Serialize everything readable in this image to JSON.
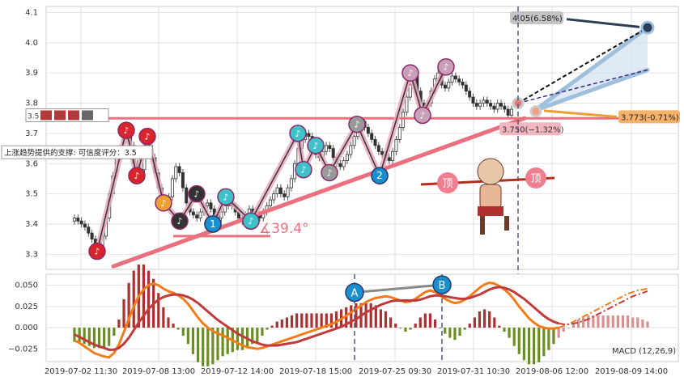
{
  "chart_data": {
    "type": "candlestick",
    "price_panel": {
      "ylim": [
        3.25,
        4.12
      ],
      "yticks": [
        3.3,
        3.4,
        3.5,
        3.6,
        3.7,
        3.8,
        3.9,
        4.0,
        4.1
      ],
      "candles_close": [
        3.42,
        3.41,
        3.4,
        3.39,
        3.37,
        3.35,
        3.33,
        3.31,
        3.36,
        3.42,
        3.5,
        3.56,
        3.62,
        3.65,
        3.68,
        3.7,
        3.66,
        3.6,
        3.56,
        3.58,
        3.63,
        3.66,
        3.62,
        3.57,
        3.52,
        3.48,
        3.46,
        3.49,
        3.55,
        3.59,
        3.57,
        3.52,
        3.47,
        3.44,
        3.43,
        3.42,
        3.44,
        3.46,
        3.47,
        3.45,
        3.43,
        3.42,
        3.44,
        3.46,
        3.48,
        3.46,
        3.44,
        3.42,
        3.41,
        3.43,
        3.45,
        3.44,
        3.43,
        3.42,
        3.44,
        3.46,
        3.48,
        3.5,
        3.52,
        3.5,
        3.49,
        3.52,
        3.55,
        3.6,
        3.65,
        3.68,
        3.7,
        3.69,
        3.66,
        3.63,
        3.62,
        3.64,
        3.66,
        3.65,
        3.62,
        3.6,
        3.59,
        3.61,
        3.63,
        3.66,
        3.69,
        3.72,
        3.74,
        3.72,
        3.7,
        3.68,
        3.66,
        3.64,
        3.63,
        3.62,
        3.61,
        3.64,
        3.68,
        3.72,
        3.77,
        3.82,
        3.86,
        3.89,
        3.84,
        3.8,
        3.78,
        3.8,
        3.84,
        3.88,
        3.9,
        3.86,
        3.85,
        3.87,
        3.89,
        3.88,
        3.87,
        3.86,
        3.84,
        3.82,
        3.8,
        3.79,
        3.8,
        3.81,
        3.8,
        3.79,
        3.78,
        3.8,
        3.79,
        3.78,
        3.76,
        3.78
      ],
      "support_line_label": "3.5",
      "support_line_value": 3.75,
      "support_note": "上涨趋势提供的支撑: 可信度评分：3.5",
      "angle_label": "∡39.4°",
      "target_label": "4.05(6.58%)",
      "target_value": 4.05,
      "projection_up_label": "3.773(-0.71%)",
      "projection_up_value": 3.773,
      "projection_low_label": "3.750(−1.32%)",
      "projection_low_value": 3.75,
      "wave_labels": [
        "1",
        "2"
      ],
      "cartoon_labels": [
        "顶",
        "顶"
      ]
    },
    "macd_panel": {
      "title": "MACD (12,26,9)",
      "ylim": [
        -0.04,
        0.063
      ],
      "yticks": [
        -0.025,
        0.0,
        0.025,
        0.05
      ],
      "ytick_labels": [
        "−0.025",
        "0.000",
        "0.025",
        "0.050"
      ],
      "markers": [
        "A",
        "B"
      ],
      "dif": [
        -0.015,
        -0.018,
        -0.022,
        -0.026,
        -0.03,
        -0.032,
        -0.034,
        -0.035,
        -0.03,
        -0.02,
        -0.005,
        0.01,
        0.025,
        0.037,
        0.045,
        0.05,
        0.052,
        0.05,
        0.046,
        0.043,
        0.041,
        0.038,
        0.034,
        0.028,
        0.02,
        0.012,
        0.005,
        0.0,
        -0.004,
        -0.007,
        -0.009,
        -0.012,
        -0.015,
        -0.018,
        -0.021,
        -0.023,
        -0.024,
        -0.025,
        -0.024,
        -0.022,
        -0.02,
        -0.018,
        -0.016,
        -0.014,
        -0.012,
        -0.01,
        -0.008,
        -0.006,
        -0.004,
        -0.002,
        0.0,
        0.002,
        0.004,
        0.007,
        0.01,
        0.014,
        0.018,
        0.022,
        0.026,
        0.03,
        0.033,
        0.035,
        0.036,
        0.037,
        0.036,
        0.034,
        0.032,
        0.03,
        0.031,
        0.034,
        0.038,
        0.042,
        0.044,
        0.042,
        0.038,
        0.034,
        0.031,
        0.029,
        0.03,
        0.033,
        0.037,
        0.042,
        0.047,
        0.051,
        0.053,
        0.052,
        0.049,
        0.045,
        0.04,
        0.033,
        0.025,
        0.018,
        0.011,
        0.006,
        0.002,
        0.0,
        -0.001,
        -0.001,
        0.0,
        0.002,
        0.004,
        0.007,
        0.01,
        0.013,
        0.016,
        0.019,
        0.022,
        0.025,
        0.028,
        0.031,
        0.034,
        0.037,
        0.04,
        0.042,
        0.044,
        0.045,
        0.046
      ],
      "dea": [
        -0.008,
        -0.011,
        -0.014,
        -0.017,
        -0.02,
        -0.022,
        -0.024,
        -0.026,
        -0.026,
        -0.024,
        -0.019,
        -0.012,
        -0.003,
        0.006,
        0.014,
        0.022,
        0.028,
        0.033,
        0.036,
        0.038,
        0.039,
        0.039,
        0.038,
        0.036,
        0.033,
        0.029,
        0.024,
        0.019,
        0.014,
        0.009,
        0.005,
        0.001,
        -0.003,
        -0.007,
        -0.01,
        -0.013,
        -0.016,
        -0.018,
        -0.02,
        -0.021,
        -0.021,
        -0.021,
        -0.02,
        -0.019,
        -0.018,
        -0.017,
        -0.015,
        -0.013,
        -0.011,
        -0.009,
        -0.007,
        -0.005,
        -0.003,
        -0.001,
        0.001,
        0.004,
        0.007,
        0.01,
        0.014,
        0.018,
        0.021,
        0.024,
        0.027,
        0.029,
        0.031,
        0.032,
        0.032,
        0.032,
        0.032,
        0.032,
        0.033,
        0.035,
        0.037,
        0.038,
        0.038,
        0.037,
        0.036,
        0.035,
        0.034,
        0.034,
        0.035,
        0.037,
        0.039,
        0.042,
        0.045,
        0.047,
        0.048,
        0.047,
        0.045,
        0.042,
        0.038,
        0.034,
        0.029,
        0.024,
        0.019,
        0.014,
        0.01,
        0.007,
        0.005,
        0.004,
        0.004,
        0.005,
        0.006,
        0.008,
        0.01,
        0.013,
        0.016,
        0.019,
        0.022,
        0.025,
        0.028,
        0.031,
        0.034,
        0.037,
        0.039,
        0.041,
        0.043
      ],
      "forecast_start_index": 98
    },
    "x_tick_labels": [
      "2019-07-02 11:30",
      "2019-07-08 13:00",
      "2019-07-12 14:00",
      "2019-07-18 15:00",
      "2019-07-25 09:30",
      "2019-07-31 10:30",
      "2019-08-06 12:00",
      "2019-08-09 14:00"
    ],
    "colors": {
      "up": "#c0392b",
      "down": "#6b8e23",
      "support": "#e8707f",
      "dif": "#f07d1a",
      "dea": "#c23b3b",
      "channel": "#9fbfdc",
      "dash_marker": "#4a5a7a"
    }
  }
}
